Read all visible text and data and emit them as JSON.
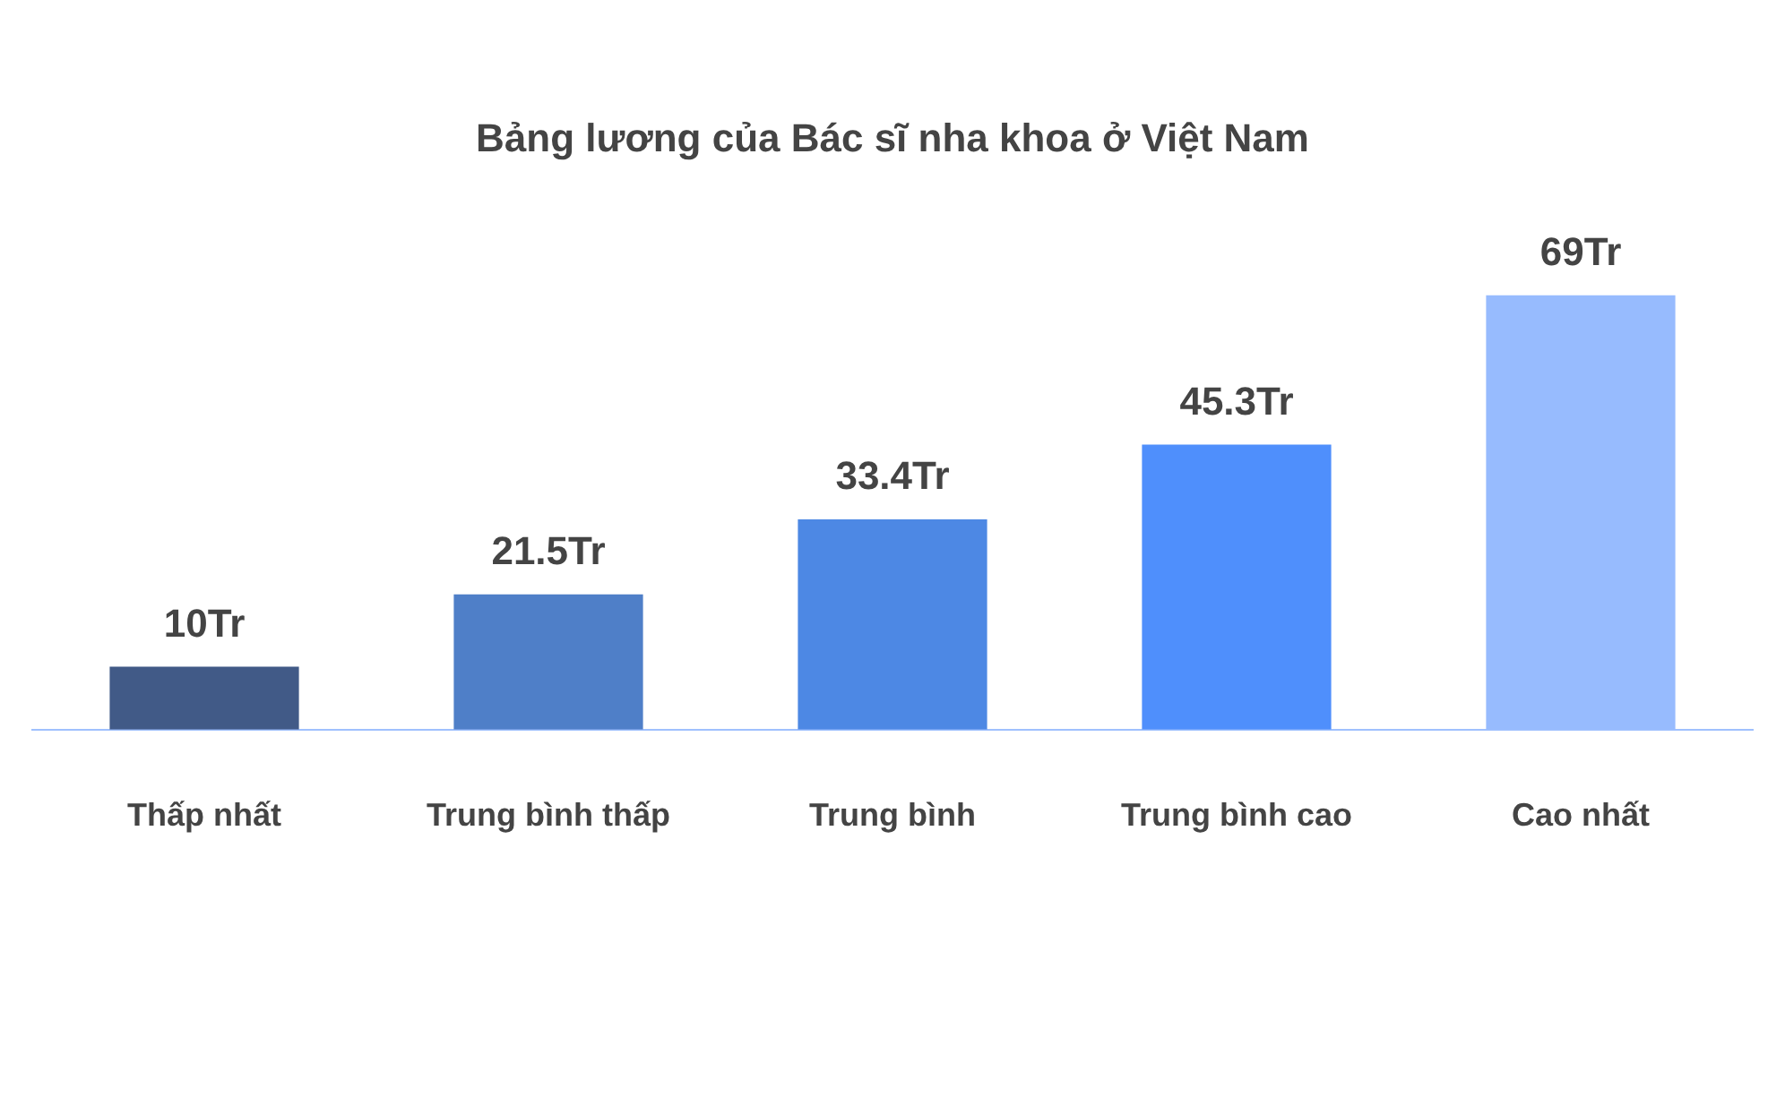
{
  "chart_data": {
    "type": "bar",
    "title": "Bảng lương của Bác sĩ nha khoa ở Việt Nam",
    "categories": [
      "Thấp nhất",
      "Trung bình thấp",
      "Trung bình",
      "Trung bình cao",
      "Cao nhất"
    ],
    "values": [
      10,
      21.5,
      33.4,
      45.3,
      69
    ],
    "value_labels": [
      "10Tr",
      "21.5Tr",
      "33.4Tr",
      "45.3Tr",
      "69Tr"
    ],
    "colors": [
      "#415a87",
      "#4f7fc8",
      "#4d88e4",
      "#4f8ffc",
      "#97bbfe"
    ],
    "tick_labels": "x",
    "grid": false,
    "legend": false
  }
}
